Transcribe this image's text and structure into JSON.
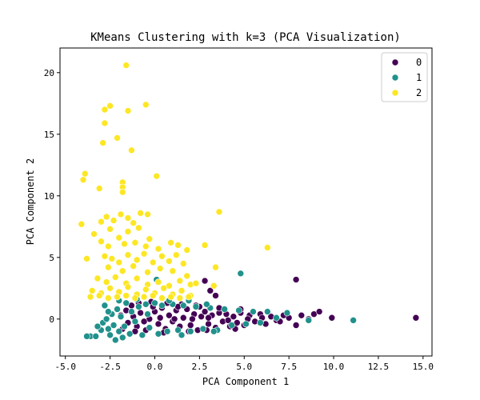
{
  "chart_data": {
    "type": "scatter",
    "title": "KMeans Clustering with k=3 (PCA Visualization)",
    "xlabel": "PCA Component 1",
    "ylabel": "PCA Component 2",
    "xlim": [
      -5.3,
      15.5
    ],
    "ylim": [
      -3.0,
      22.0
    ],
    "xticks": [
      -5.0,
      -2.5,
      0.0,
      2.5,
      5.0,
      7.5,
      10.0,
      12.5,
      15.0
    ],
    "xtick_labels": [
      "-5.0",
      "-2.5",
      "0.0",
      "2.5",
      "5.0",
      "7.5",
      "10.0",
      "12.5",
      "15.0"
    ],
    "yticks": [
      0,
      5,
      10,
      15,
      20
    ],
    "ytick_labels": [
      "0",
      "5",
      "10",
      "15",
      "20"
    ],
    "grid": false,
    "legend_position": "top-right",
    "colors": {
      "0": "#440154",
      "1": "#21918c",
      "2": "#fde725"
    },
    "series": [
      {
        "name": "0",
        "color": "#440154",
        "points": [
          [
            -1.8,
            -0.8
          ],
          [
            -1.5,
            -0.3
          ],
          [
            -1.2,
            0.2
          ],
          [
            -1.0,
            -0.6
          ],
          [
            -0.8,
            0.5
          ],
          [
            -0.5,
            -0.9
          ],
          [
            -0.3,
            0.0
          ],
          [
            0.0,
            0.6
          ],
          [
            0.2,
            -0.4
          ],
          [
            0.4,
            0.9
          ],
          [
            0.6,
            -0.8
          ],
          [
            0.8,
            0.3
          ],
          [
            1.0,
            -0.2
          ],
          [
            1.2,
            0.7
          ],
          [
            1.4,
            -0.6
          ],
          [
            1.6,
            0.1
          ],
          [
            1.8,
            0.8
          ],
          [
            2.0,
            -0.5
          ],
          [
            2.2,
            0.4
          ],
          [
            2.4,
            -0.9
          ],
          [
            2.6,
            0.2
          ],
          [
            2.8,
            0.6
          ],
          [
            3.0,
            -0.4
          ],
          [
            3.2,
            0.3
          ],
          [
            3.4,
            -0.7
          ],
          [
            3.6,
            0.5
          ],
          [
            3.8,
            -0.2
          ],
          [
            4.0,
            0.4
          ],
          [
            4.2,
            -0.6
          ],
          [
            4.4,
            0.2
          ],
          [
            4.6,
            -0.3
          ],
          [
            4.8,
            0.5
          ],
          [
            5.0,
            -0.5
          ],
          [
            5.3,
            0.3
          ],
          [
            5.6,
            -0.2
          ],
          [
            5.9,
            0.4
          ],
          [
            6.2,
            -0.4
          ],
          [
            6.5,
            0.2
          ],
          [
            6.8,
            -0.1
          ],
          [
            7.2,
            0.3
          ],
          [
            7.5,
            0.1
          ],
          [
            7.9,
            -0.5
          ],
          [
            8.2,
            0.3
          ],
          [
            8.6,
            0.0
          ],
          [
            8.9,
            0.4
          ],
          [
            9.2,
            0.6
          ],
          [
            9.9,
            0.1
          ],
          [
            14.6,
            0.1
          ],
          [
            7.9,
            3.2
          ],
          [
            2.8,
            3.1
          ],
          [
            3.4,
            1.9
          ],
          [
            3.1,
            2.3
          ],
          [
            -1.3,
            1.1
          ],
          [
            -0.9,
            1.3
          ],
          [
            -0.2,
            1.4
          ],
          [
            0.7,
            1.3
          ],
          [
            1.5,
            1.2
          ],
          [
            2.5,
            1.0
          ],
          [
            -1.6,
            0.7
          ],
          [
            -0.6,
            -0.2
          ],
          [
            0.3,
            0.1
          ],
          [
            1.1,
            0.0
          ],
          [
            2.1,
            0.0
          ],
          [
            3.0,
            0.1
          ],
          [
            4.1,
            -0.1
          ],
          [
            5.2,
            0.0
          ],
          [
            6.0,
            0.1
          ],
          [
            7.0,
            -0.2
          ],
          [
            -1.9,
            0.3
          ],
          [
            -1.1,
            -1.0
          ],
          [
            0.5,
            -1.1
          ],
          [
            1.9,
            -1.0
          ],
          [
            2.9,
            -0.9
          ],
          [
            4.5,
            -0.8
          ],
          [
            -0.1,
            1.0
          ],
          [
            1.3,
            1.0
          ],
          [
            2.3,
            1.1
          ],
          [
            3.6,
            0.9
          ],
          [
            4.8,
            0.8
          ],
          [
            6.3,
            0.6
          ]
        ]
      },
      {
        "name": "1",
        "color": "#21918c",
        "points": [
          [
            -3.6,
            -1.4
          ],
          [
            -3.3,
            -1.4
          ],
          [
            -3.0,
            -0.9
          ],
          [
            -2.9,
            -0.3
          ],
          [
            -2.7,
            0.0
          ],
          [
            -2.6,
            -0.8
          ],
          [
            -2.5,
            -1.3
          ],
          [
            -2.4,
            0.4
          ],
          [
            -2.3,
            -0.5
          ],
          [
            -2.2,
            -1.7
          ],
          [
            -2.1,
            0.8
          ],
          [
            -2.0,
            -1.0
          ],
          [
            -1.9,
            0.2
          ],
          [
            -1.8,
            -1.5
          ],
          [
            -1.6,
            1.3
          ],
          [
            -1.4,
            -1.2
          ],
          [
            -1.3,
            0.6
          ],
          [
            -1.1,
            -0.2
          ],
          [
            -0.9,
            1.0
          ],
          [
            -0.7,
            -1.3
          ],
          [
            -0.5,
            1.2
          ],
          [
            -0.3,
            -0.7
          ],
          [
            0.0,
            1.3
          ],
          [
            0.2,
            -1.2
          ],
          [
            0.4,
            1.1
          ],
          [
            0.7,
            -1.0
          ],
          [
            1.0,
            1.2
          ],
          [
            1.3,
            -0.9
          ],
          [
            1.6,
            1.1
          ],
          [
            2.0,
            -1.0
          ],
          [
            2.3,
            1.0
          ],
          [
            2.7,
            -0.8
          ],
          [
            3.1,
            0.9
          ],
          [
            3.5,
            -0.9
          ],
          [
            3.9,
            0.8
          ],
          [
            4.3,
            -0.5
          ],
          [
            4.7,
            0.7
          ],
          [
            5.1,
            -0.4
          ],
          [
            5.5,
            0.6
          ],
          [
            5.9,
            -0.3
          ],
          [
            6.3,
            0.6
          ],
          [
            6.8,
            0.1
          ],
          [
            7.4,
            0.5
          ],
          [
            8.6,
            -0.1
          ],
          [
            11.1,
            -0.1
          ],
          [
            4.8,
            3.7
          ],
          [
            0.1,
            3.2
          ],
          [
            -3.8,
            -1.4
          ],
          [
            -2.8,
            1.1
          ],
          [
            -2.0,
            1.5
          ],
          [
            -1.0,
            1.6
          ],
          [
            0.8,
            1.5
          ],
          [
            1.9,
            1.5
          ],
          [
            2.9,
            1.2
          ],
          [
            -3.2,
            -0.6
          ],
          [
            -2.6,
            0.6
          ],
          [
            -1.7,
            -0.6
          ],
          [
            -0.4,
            0.4
          ],
          [
            1.5,
            -1.3
          ],
          [
            3.3,
            -1.0
          ]
        ]
      },
      {
        "name": "2",
        "color": "#fde725",
        "points": [
          [
            -1.6,
            20.6
          ],
          [
            -2.5,
            17.3
          ],
          [
            -2.8,
            17.0
          ],
          [
            -0.5,
            17.4
          ],
          [
            -1.5,
            16.9
          ],
          [
            -2.1,
            14.7
          ],
          [
            -2.9,
            14.3
          ],
          [
            -1.3,
            13.7
          ],
          [
            -2.8,
            15.9
          ],
          [
            -3.9,
            11.8
          ],
          [
            -4.0,
            11.3
          ],
          [
            -3.1,
            10.6
          ],
          [
            -1.8,
            11.1
          ],
          [
            -1.8,
            10.7
          ],
          [
            -1.8,
            10.3
          ],
          [
            0.1,
            11.6
          ],
          [
            -4.1,
            7.7
          ],
          [
            -3.0,
            7.9
          ],
          [
            -2.7,
            8.3
          ],
          [
            -2.3,
            8.0
          ],
          [
            -1.9,
            8.5
          ],
          [
            -1.5,
            8.2
          ],
          [
            -1.2,
            7.8
          ],
          [
            -0.8,
            8.6
          ],
          [
            -0.4,
            8.5
          ],
          [
            -2.5,
            7.3
          ],
          [
            -3.4,
            6.9
          ],
          [
            -2.0,
            6.6
          ],
          [
            -0.9,
            7.4
          ],
          [
            -1.5,
            7.1
          ],
          [
            3.6,
            8.7
          ],
          [
            -3.0,
            6.3
          ],
          [
            -2.6,
            5.9
          ],
          [
            -1.7,
            6.1
          ],
          [
            -1.1,
            6.2
          ],
          [
            -0.5,
            5.9
          ],
          [
            0.2,
            5.7
          ],
          [
            0.9,
            6.2
          ],
          [
            1.3,
            6.0
          ],
          [
            2.8,
            6.0
          ],
          [
            6.3,
            5.8
          ],
          [
            -2.8,
            5.1
          ],
          [
            -2.4,
            4.9
          ],
          [
            -2.0,
            4.6
          ],
          [
            -1.5,
            5.2
          ],
          [
            -1.0,
            4.8
          ],
          [
            -0.6,
            5.3
          ],
          [
            -0.1,
            4.6
          ],
          [
            0.4,
            5.1
          ],
          [
            0.8,
            4.7
          ],
          [
            1.2,
            5.2
          ],
          [
            1.6,
            4.5
          ],
          [
            -2.6,
            4.2
          ],
          [
            -1.8,
            3.9
          ],
          [
            -1.2,
            4.3
          ],
          [
            -0.4,
            3.8
          ],
          [
            0.3,
            4.1
          ],
          [
            1.0,
            3.9
          ],
          [
            1.8,
            3.5
          ],
          [
            3.4,
            4.2
          ],
          [
            -3.2,
            3.3
          ],
          [
            -2.7,
            3.0
          ],
          [
            -2.2,
            3.4
          ],
          [
            -1.6,
            2.9
          ],
          [
            -1.0,
            3.3
          ],
          [
            -0.4,
            2.8
          ],
          [
            0.2,
            3.0
          ],
          [
            0.8,
            2.7
          ],
          [
            1.4,
            3.1
          ],
          [
            2.0,
            2.8
          ],
          [
            2.3,
            2.9
          ],
          [
            3.3,
            2.7
          ],
          [
            -3.5,
            2.3
          ],
          [
            -3.0,
            2.1
          ],
          [
            -2.5,
            2.5
          ],
          [
            -2.0,
            2.2
          ],
          [
            -1.5,
            2.6
          ],
          [
            -1.0,
            2.0
          ],
          [
            -0.5,
            2.4
          ],
          [
            0.0,
            2.1
          ],
          [
            0.5,
            2.5
          ],
          [
            1.0,
            2.0
          ],
          [
            1.5,
            2.3
          ],
          [
            2.0,
            1.9
          ],
          [
            -3.6,
            1.8
          ],
          [
            -3.1,
            1.9
          ],
          [
            -2.6,
            1.7
          ],
          [
            -2.1,
            1.8
          ],
          [
            -1.6,
            1.9
          ],
          [
            -1.1,
            1.7
          ],
          [
            -0.6,
            1.8
          ],
          [
            -0.1,
            1.9
          ],
          [
            0.4,
            1.7
          ],
          [
            0.9,
            1.8
          ],
          [
            1.4,
            1.7
          ],
          [
            1.9,
            1.8
          ],
          [
            -3.8,
            4.9
          ],
          [
            -0.3,
            6.5
          ],
          [
            1.8,
            5.6
          ]
        ]
      }
    ]
  }
}
